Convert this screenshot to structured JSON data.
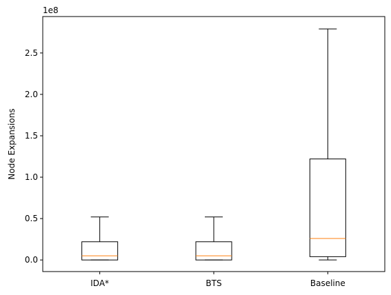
{
  "chart_data": {
    "type": "box",
    "ylabel": "Node Expansions",
    "offset_label": "1e8",
    "ylim": [
      -0.14,
      2.94
    ],
    "yticks": [
      {
        "value": 0.0,
        "label": "0.0"
      },
      {
        "value": 0.5,
        "label": "0.5"
      },
      {
        "value": 1.0,
        "label": "1.0"
      },
      {
        "value": 1.5,
        "label": "1.5"
      },
      {
        "value": 2.0,
        "label": "2.0"
      },
      {
        "value": 2.5,
        "label": "2.5"
      }
    ],
    "categories": [
      "IDA*",
      "BTS",
      "Baseline"
    ],
    "boxes": [
      {
        "name": "IDA*",
        "whisker_low": 0.0,
        "q1": 0.0,
        "median": 0.05,
        "q3": 0.22,
        "whisker_high": 0.52
      },
      {
        "name": "BTS",
        "whisker_low": 0.0,
        "q1": 0.0,
        "median": 0.05,
        "q3": 0.22,
        "whisker_high": 0.52
      },
      {
        "name": "Baseline",
        "whisker_low": 0.0,
        "q1": 0.04,
        "median": 0.26,
        "q3": 1.22,
        "whisker_high": 2.79
      }
    ],
    "colors": {
      "box": "#000000",
      "median": "#ff7f0e"
    }
  }
}
